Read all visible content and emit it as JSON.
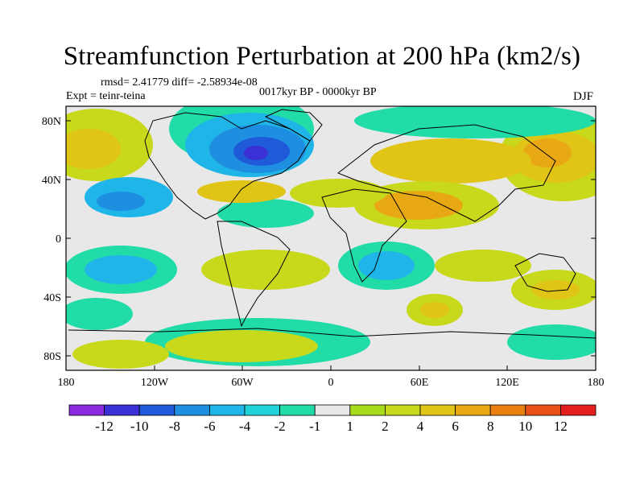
{
  "title": "Streamfunction Perturbation at 200 hPa (km2/s)",
  "stats": "rmsd= 2.41779 diff= -2.58934e-08",
  "experiment": "Expt = teinr-teina",
  "period": "0017kyr BP - 0000kyr BP",
  "season": "DJF",
  "axes": {
    "lat_labels": [
      "80N",
      "40N",
      "0",
      "40S",
      "80S"
    ],
    "lon_labels": [
      "180",
      "120W",
      "60W",
      "0",
      "60E",
      "120E",
      "180"
    ]
  },
  "colorbar": {
    "labels": [
      "-12",
      "-10",
      "-8",
      "-6",
      "-4",
      "-2",
      "-1",
      "1",
      "2",
      "4",
      "6",
      "8",
      "10",
      "12"
    ],
    "colors": [
      "#8a2be2",
      "#3b2fd6",
      "#1f5bd8",
      "#1e8fe0",
      "#1fb5e8",
      "#22d2d9",
      "#22dca7",
      "#e8e8e8",
      "#a6dc1c",
      "#c8d81a",
      "#e0c416",
      "#e8a814",
      "#ea8012",
      "#e8521a",
      "#e21e1e"
    ]
  },
  "colors": {
    "background": "#e8e8e8",
    "coast": "#000000"
  }
}
